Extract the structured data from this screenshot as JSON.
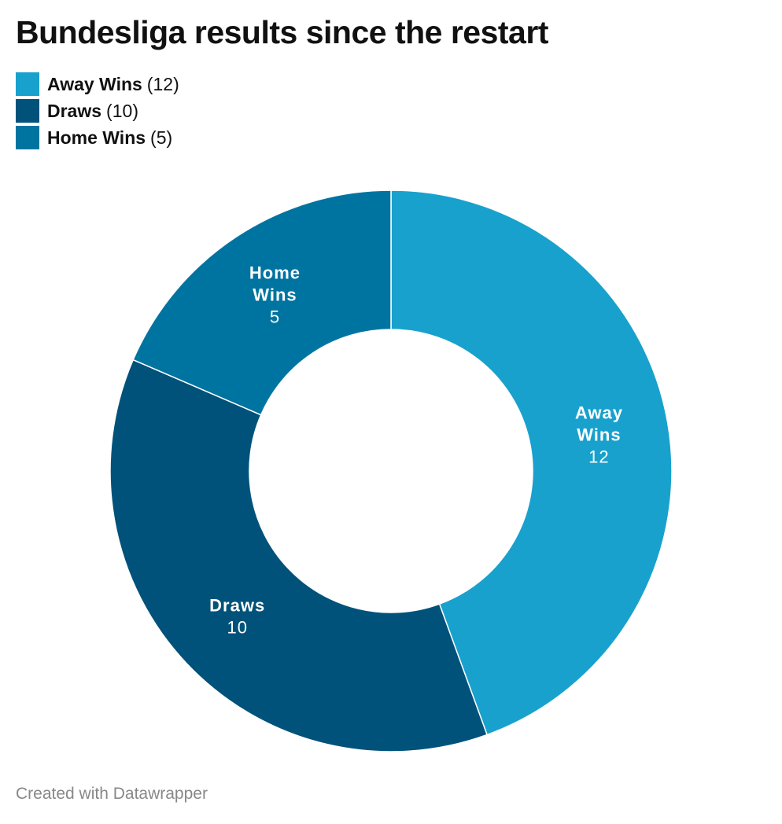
{
  "chart_data": {
    "type": "pie",
    "variant": "donut",
    "title": "Bundesliga results since the restart",
    "slices": [
      {
        "label": "Away Wins",
        "label_lines": [
          "Away",
          "Wins"
        ],
        "value": 12,
        "color": "#18a1cd"
      },
      {
        "label": "Draws",
        "label_lines": [
          "Draws"
        ],
        "value": 10,
        "color": "#00527a"
      },
      {
        "label": "Home Wins",
        "label_lines": [
          "Home",
          "Wins"
        ],
        "value": 5,
        "color": "#0074a0"
      }
    ],
    "legend_placement": "top-left"
  },
  "footer": {
    "credit": "Created with Datawrapper"
  }
}
